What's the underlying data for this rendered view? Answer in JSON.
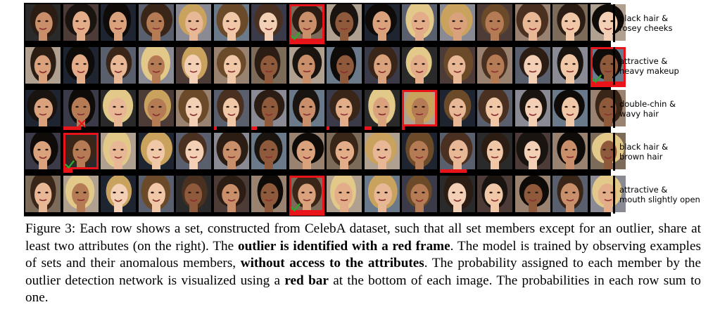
{
  "figure": {
    "rows": [
      {
        "attributes": "black hair &\nrosey cheeks",
        "outlier_index": 7,
        "bars": [
          {
            "index": 7,
            "prob": 1.0
          }
        ],
        "marker": "check"
      },
      {
        "attributes": "attractive &\nheavy makeup",
        "outlier_index": 15,
        "bars": [
          {
            "index": 15,
            "prob": 1.0
          }
        ],
        "marker": "check"
      },
      {
        "attributes": "double-chin &\nwavy hair",
        "outlier_index": 10,
        "bars": [
          {
            "index": 1,
            "prob": 0.5
          },
          {
            "index": 5,
            "prob": 0.05
          },
          {
            "index": 6,
            "prob": 0.15
          },
          {
            "index": 8,
            "prob": 0.04
          },
          {
            "index": 9,
            "prob": 0.2
          },
          {
            "index": 10,
            "prob": 0.06
          }
        ],
        "marker": "x",
        "marker_index": 1
      },
      {
        "attributes": "black hair &\nbrown hair",
        "outlier_index": 1,
        "bars": [
          {
            "index": 1,
            "prob": 0.25
          },
          {
            "index": 11,
            "prob": 0.75
          }
        ],
        "marker": "check"
      },
      {
        "attributes": "attractive &\nmouth slightly open",
        "outlier_index": 7,
        "bars": [
          {
            "index": 7,
            "prob": 1.0
          }
        ],
        "marker": "check"
      }
    ],
    "colors": {
      "frame": "#e8141a",
      "bar": "#e8141a",
      "check": "#2ea82e",
      "x": "#e8141a"
    }
  },
  "caption": {
    "label": "Figure 3:",
    "part1": "Each row shows a set, constructed from CelebA dataset, such that all set members except for an outlier, share at least two attributes (on the right). The",
    "bold1": "outlier is identified with a red frame",
    "part2": ". The model is trained by observing examples of sets and their anomalous members,",
    "bold2": "without access to the attributes",
    "part3": ". The probability assigned to each member by the outlier detection network is visualized using a",
    "bold3": "red bar",
    "part4": "at the bottom of each image. The probabilities in each row sum to one."
  }
}
